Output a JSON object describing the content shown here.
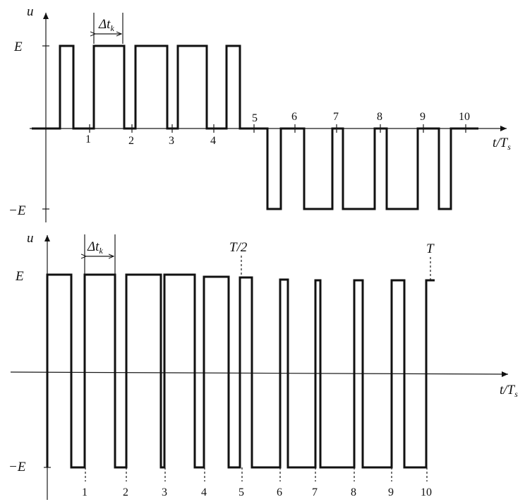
{
  "top_panel": {
    "y_axis_label": "u",
    "x_axis_label": "t/T",
    "x_axis_sub": "s",
    "level_pos": "E",
    "level_neg": "−E",
    "interval_label": "Δt",
    "interval_sub": "k",
    "tick_labels": [
      "1",
      "2",
      "3",
      "4",
      "5",
      "6",
      "7",
      "8",
      "9",
      "10"
    ]
  },
  "bottom_panel": {
    "y_axis_label": "u",
    "x_axis_label": "t/T",
    "x_axis_sub": "s",
    "level_pos": "E",
    "level_neg": "−E",
    "interval_label": "Δt",
    "interval_sub": "k",
    "half_period_label": "T/2",
    "period_label": "T",
    "tick_labels": [
      "1",
      "2",
      "3",
      "4",
      "5",
      "6",
      "7",
      "8",
      "9",
      "10"
    ]
  }
}
